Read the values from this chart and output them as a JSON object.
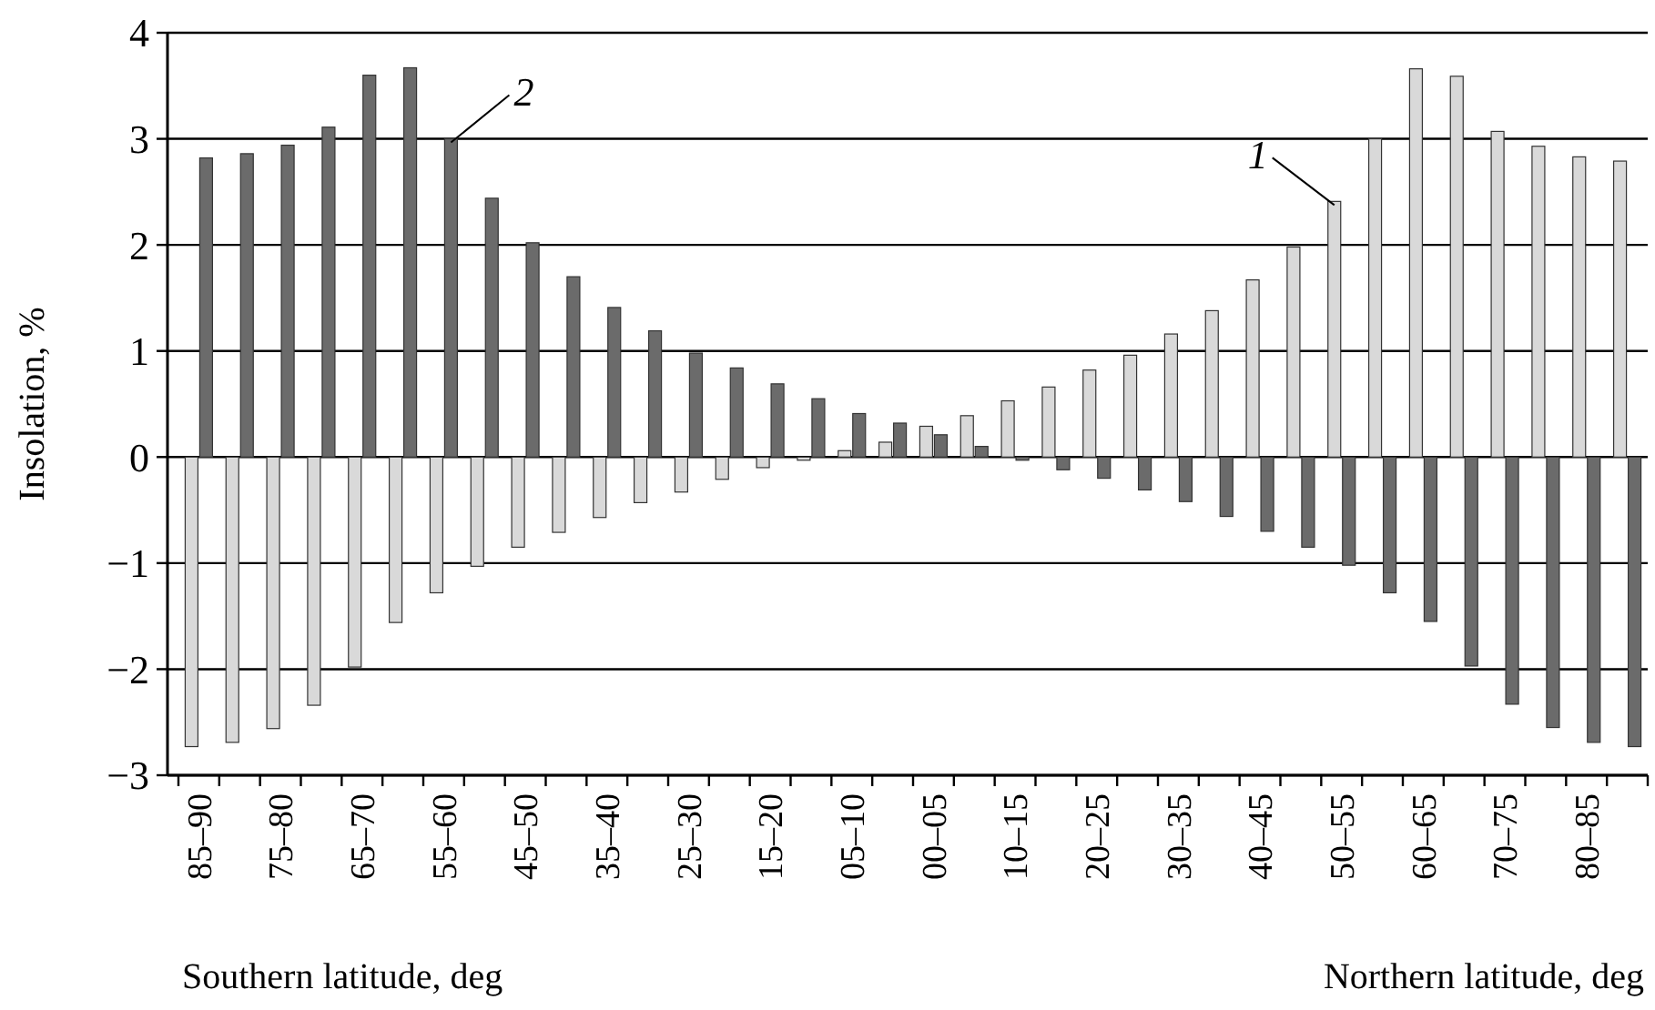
{
  "chart_data": {
    "type": "bar",
    "ylabel": "Insolation, %",
    "categories": [
      "85–90",
      null,
      "75–80",
      null,
      "65–70",
      null,
      "55–60",
      null,
      "45–50",
      null,
      "35–40",
      null,
      "25–30",
      null,
      "15–20",
      null,
      "05–10",
      null,
      "00–05",
      null,
      "10–15",
      null,
      "20–25",
      null,
      "30–35",
      null,
      "40–45",
      null,
      "50–55",
      null,
      "60–65",
      null,
      "70–75",
      null,
      "80–85",
      null
    ],
    "series": [
      {
        "name": "1",
        "color": "#d9d9d9",
        "values": [
          -2.73,
          -2.69,
          -2.56,
          -2.34,
          -1.98,
          -1.56,
          -1.28,
          -1.03,
          -0.85,
          -0.71,
          -0.57,
          -0.43,
          -0.33,
          -0.21,
          -0.1,
          -0.03,
          0.06,
          0.14,
          0.29,
          0.39,
          0.53,
          0.66,
          0.82,
          0.96,
          1.16,
          1.38,
          1.67,
          1.98,
          2.41,
          3.0,
          3.66,
          3.59,
          3.07,
          2.93,
          2.83,
          2.79
        ]
      },
      {
        "name": "2",
        "color": "#6b6b6b",
        "values": [
          2.82,
          2.86,
          2.94,
          3.11,
          3.6,
          3.67,
          3.0,
          2.44,
          2.02,
          1.7,
          1.41,
          1.19,
          0.98,
          0.84,
          0.69,
          0.55,
          0.41,
          0.32,
          0.21,
          0.1,
          -0.03,
          -0.12,
          -0.2,
          -0.31,
          -0.42,
          -0.56,
          -0.7,
          -0.85,
          -1.02,
          -1.28,
          -1.55,
          -1.97,
          -2.33,
          -2.55,
          -2.69,
          -2.73
        ]
      }
    ],
    "ylim": [
      -3,
      4
    ],
    "yticks": [
      -3,
      -2,
      -1,
      0,
      1,
      2,
      3,
      4
    ],
    "grid": "y",
    "annotations": [
      "Southern latitude, deg",
      "Northern latitude, deg"
    ]
  }
}
